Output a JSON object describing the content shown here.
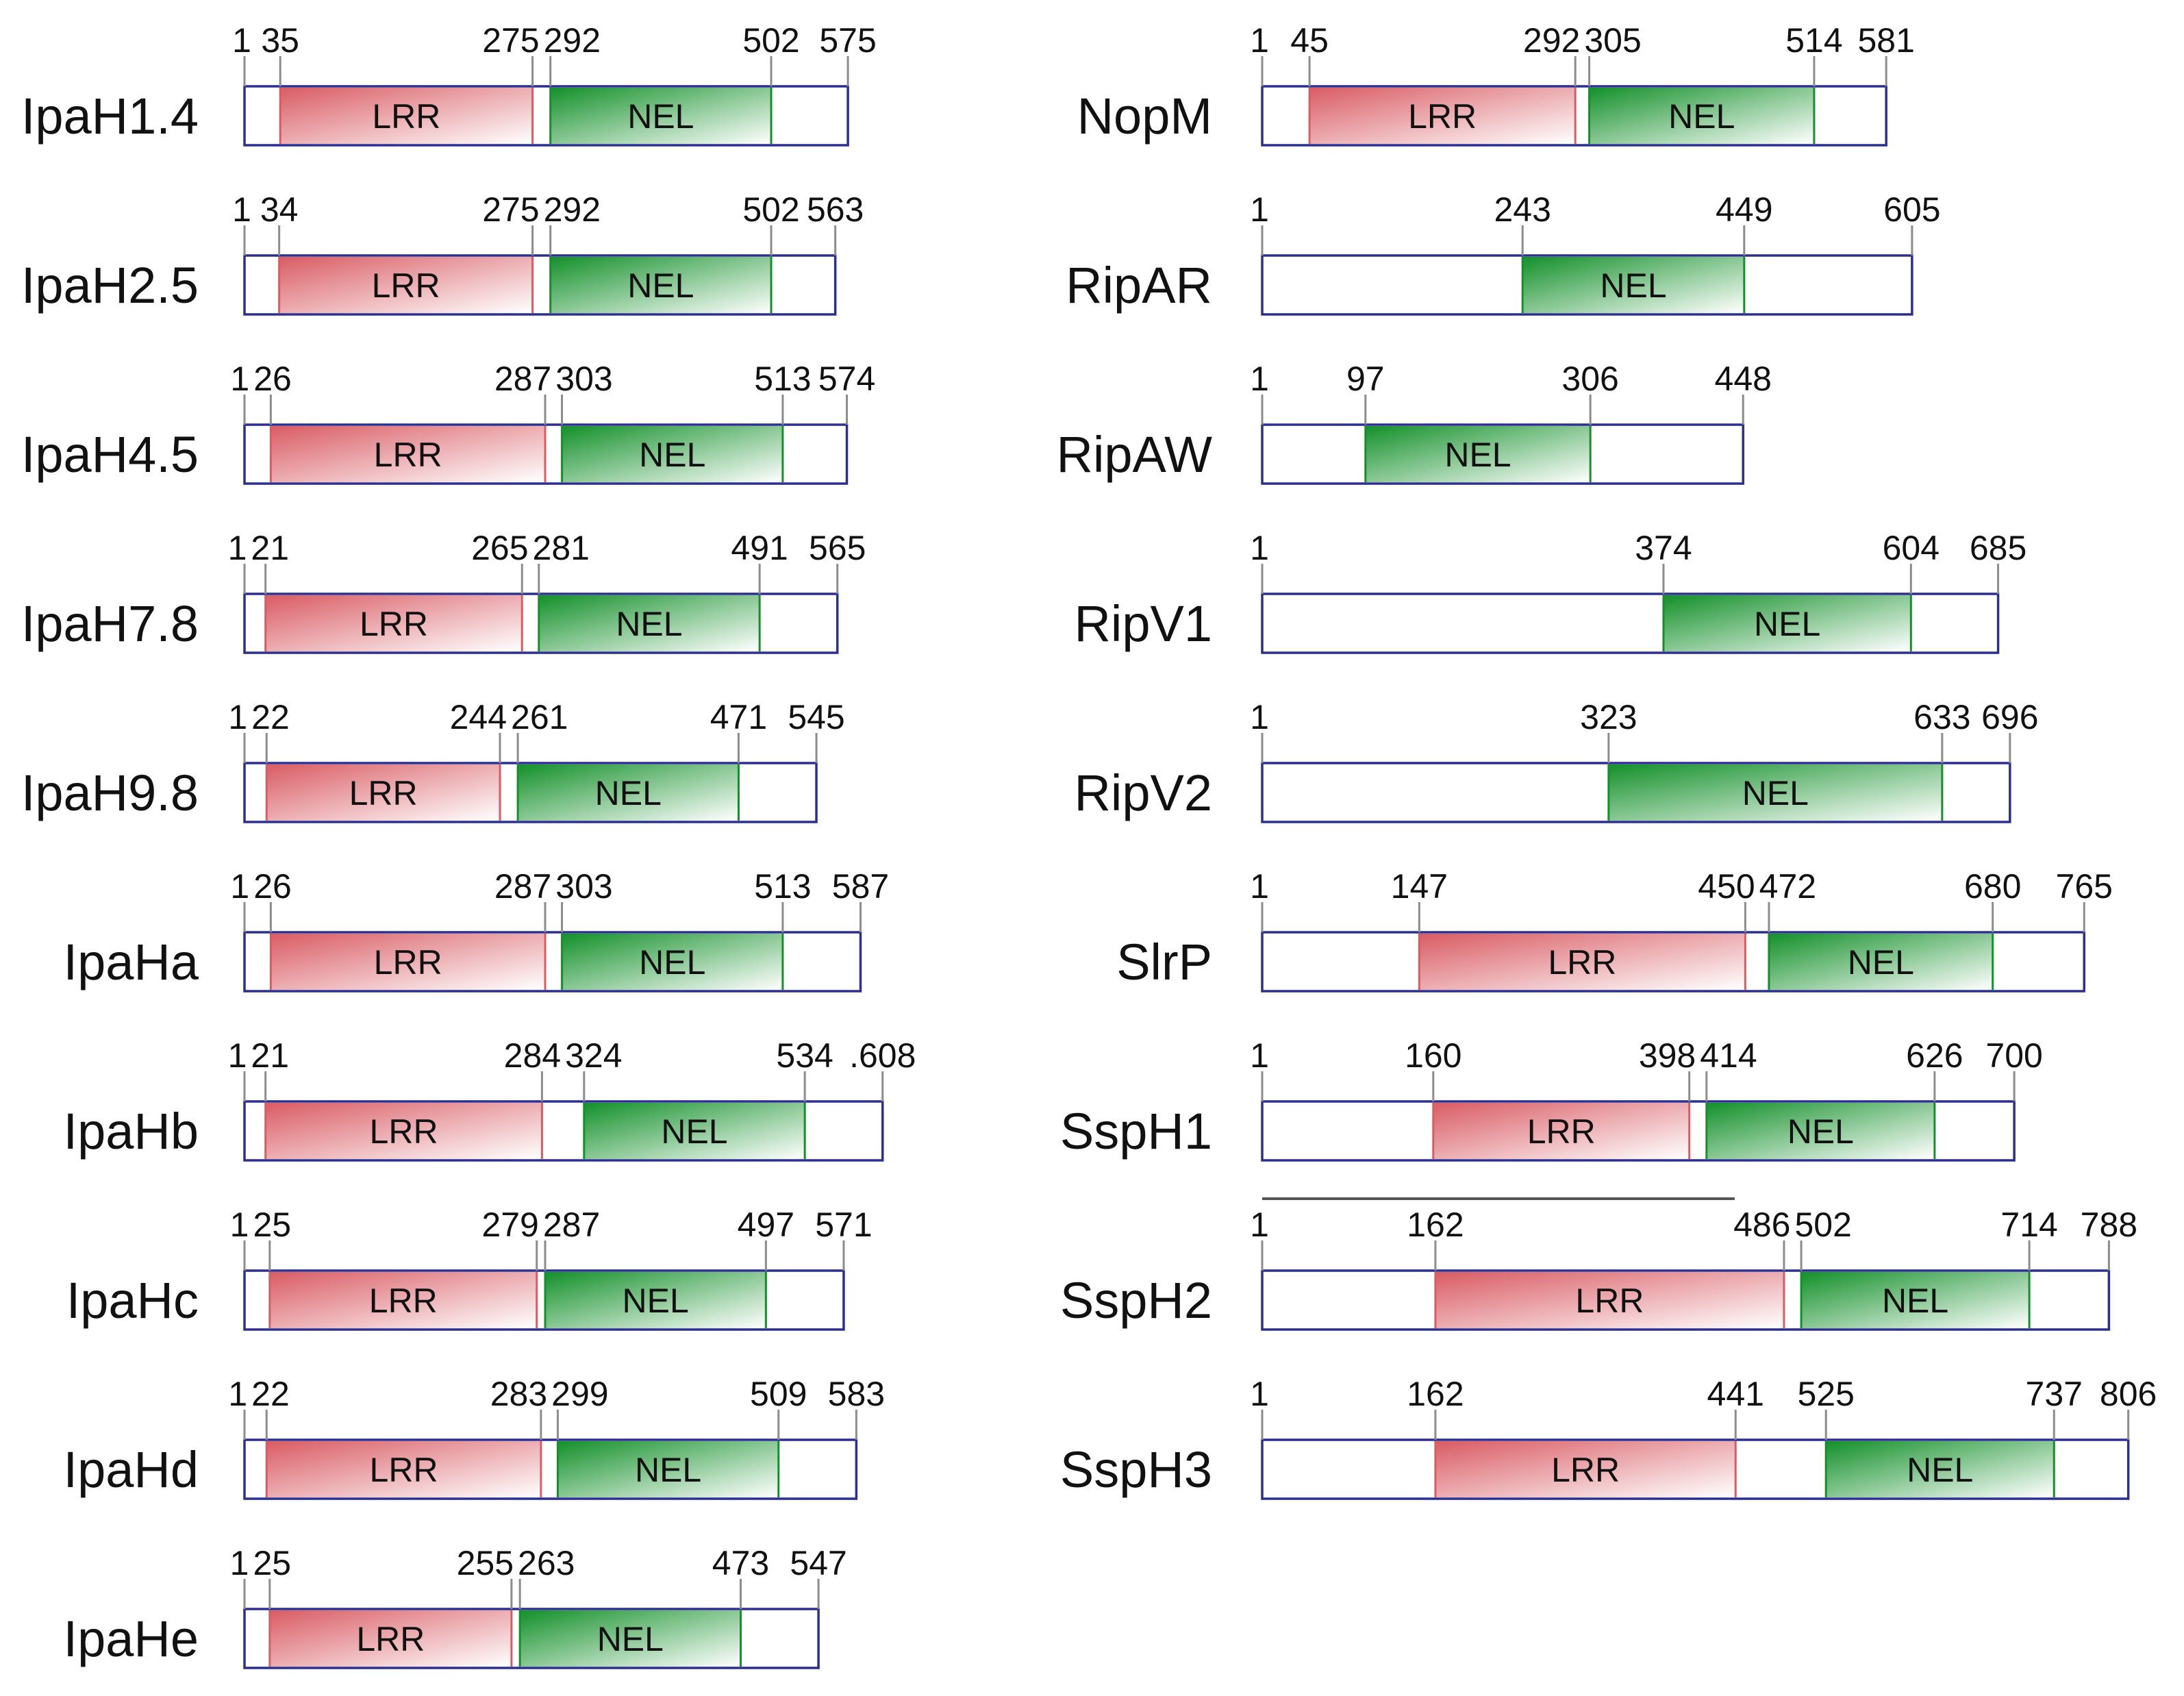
{
  "colors": {
    "outline": "#2b2f8f",
    "lrr_dark": "#d95c64",
    "lrr_light": "#ffffff",
    "nel_dark": "#14902a",
    "nel_light": "#ffffff",
    "tick": "#8c8c8c"
  },
  "proteins": [
    {
      "name": "IpaH1.4",
      "column": "left",
      "length_label": "575",
      "start_label": "1",
      "domains": [
        {
          "type": "LRR",
          "start_label": "35",
          "end_label": "275"
        },
        {
          "type": "NEL",
          "start_label": "292",
          "end_label": "502"
        }
      ]
    },
    {
      "name": "IpaH2.5",
      "column": "left",
      "length_label": "563",
      "start_label": "1",
      "domains": [
        {
          "type": "LRR",
          "start_label": "34",
          "end_label": "275"
        },
        {
          "type": "NEL",
          "start_label": "292",
          "end_label": "502"
        }
      ]
    },
    {
      "name": "IpaH4.5",
      "column": "left",
      "length_label": "574",
      "start_label": "1",
      "domains": [
        {
          "type": "LRR",
          "start_label": "26",
          "end_label": "287"
        },
        {
          "type": "NEL",
          "start_label": "303",
          "end_label": "513"
        }
      ]
    },
    {
      "name": "IpaH7.8",
      "column": "left",
      "length_label": "565",
      "start_label": "1",
      "domains": [
        {
          "type": "LRR",
          "start_label": "21",
          "end_label": "265"
        },
        {
          "type": "NEL",
          "start_label": "281",
          "end_label": "491"
        }
      ]
    },
    {
      "name": "IpaH9.8",
      "column": "left",
      "length_label": "545",
      "start_label": "1",
      "domains": [
        {
          "type": "LRR",
          "start_label": "22",
          "end_label": "244"
        },
        {
          "type": "NEL",
          "start_label": "261",
          "end_label": "471"
        }
      ]
    },
    {
      "name": "IpaHa",
      "column": "left",
      "length_label": "587",
      "start_label": "1",
      "domains": [
        {
          "type": "LRR",
          "start_label": "26",
          "end_label": "287"
        },
        {
          "type": "NEL",
          "start_label": "303",
          "end_label": "513"
        }
      ]
    },
    {
      "name": "IpaHb",
      "column": "left",
      "length_label": ".608",
      "start_label": "1",
      "domains": [
        {
          "type": "LRR",
          "start_label": "21",
          "end_label": "284"
        },
        {
          "type": "NEL",
          "start_label": "324",
          "end_label": "534"
        }
      ]
    },
    {
      "name": "IpaHc",
      "column": "left",
      "length_label": "571",
      "start_label": "1",
      "domains": [
        {
          "type": "LRR",
          "start_label": "25",
          "end_label": "279"
        },
        {
          "type": "NEL",
          "start_label": "287",
          "end_label": "497"
        }
      ]
    },
    {
      "name": "IpaHd",
      "column": "left",
      "length_label": "583",
      "start_label": "1",
      "domains": [
        {
          "type": "LRR",
          "start_label": "22",
          "end_label": "283"
        },
        {
          "type": "NEL",
          "start_label": "299",
          "end_label": "509"
        }
      ]
    },
    {
      "name": "IpaHe",
      "column": "left",
      "length_label": "547",
      "start_label": "1",
      "domains": [
        {
          "type": "LRR",
          "start_label": "25",
          "end_label": "255"
        },
        {
          "type": "NEL",
          "start_label": "263",
          "end_label": "473"
        }
      ]
    },
    {
      "name": "NopM",
      "column": "right",
      "length_label": "581",
      "start_label": "1",
      "domains": [
        {
          "type": "LRR",
          "start_label": "45",
          "end_label": "292"
        },
        {
          "type": "NEL",
          "start_label": "305",
          "end_label": "514"
        }
      ]
    },
    {
      "name": "RipAR",
      "column": "right",
      "length_label": "605",
      "start_label": "1",
      "domains": [
        {
          "type": "NEL",
          "start_label": "243",
          "end_label": "449"
        }
      ]
    },
    {
      "name": "RipAW",
      "column": "right",
      "length_label": "448",
      "start_label": "1",
      "domains": [
        {
          "type": "NEL",
          "start_label": "97",
          "end_label": "306"
        }
      ]
    },
    {
      "name": "RipV1",
      "column": "right",
      "length_label": "685",
      "start_label": "1",
      "domains": [
        {
          "type": "NEL",
          "start_label": "374",
          "end_label": "604"
        }
      ]
    },
    {
      "name": "RipV2",
      "column": "right",
      "length_label": "696",
      "start_label": "1",
      "domains": [
        {
          "type": "NEL",
          "start_label": "323",
          "end_label": "633"
        }
      ]
    },
    {
      "name": "SlrP",
      "column": "right",
      "length_label": "765",
      "start_label": "1",
      "domains": [
        {
          "type": "LRR",
          "start_label": "147",
          "end_label": "450"
        },
        {
          "type": "NEL",
          "start_label": "472",
          "end_label": "680"
        }
      ]
    },
    {
      "name": "SspH1",
      "column": "right",
      "length_label": "700",
      "start_label": "1",
      "domains": [
        {
          "type": "LRR",
          "start_label": "160",
          "end_label": "398"
        },
        {
          "type": "NEL",
          "start_label": "414",
          "end_label": "626"
        }
      ]
    },
    {
      "name": "SspH2",
      "column": "right",
      "length_label": "788",
      "start_label": "1",
      "domains": [
        {
          "type": "LRR",
          "start_label": "162",
          "end_label": "486"
        },
        {
          "type": "NEL",
          "start_label": "502",
          "end_label": "714"
        }
      ]
    },
    {
      "name": "SspH3",
      "column": "right",
      "length_label": "806",
      "start_label": "1",
      "domains": [
        {
          "type": "LRR",
          "start_label": "162",
          "end_label": "441"
        },
        {
          "type": "NEL",
          "start_label": "525",
          "end_label": "737"
        }
      ]
    }
  ]
}
